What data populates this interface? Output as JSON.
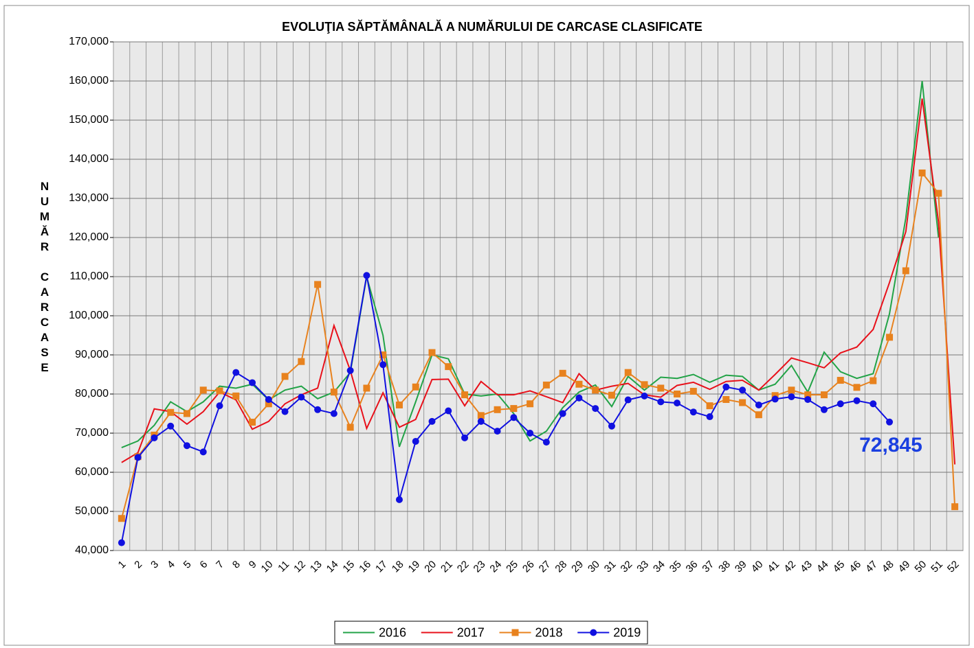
{
  "chart_data": {
    "type": "line",
    "title": "EVOLUŢIA SĂPTĂMÂNALĂ A NUMĂRULUI DE CARCASE  CLASIFICATE",
    "y_label": "NUMĂR CARCASE",
    "annotation": "72,845",
    "categories": [
      "1",
      "2",
      "3",
      "4",
      "5",
      "6",
      "7",
      "8",
      "9",
      "10",
      "11",
      "12",
      "13",
      "14",
      "15",
      "16",
      "17",
      "18",
      "19",
      "20",
      "21",
      "22",
      "23",
      "24",
      "25",
      "26",
      "27",
      "28",
      "29",
      "30",
      "31",
      "32",
      "33",
      "34",
      "35",
      "36",
      "37",
      "38",
      "39",
      "40",
      "41",
      "42",
      "43",
      "44",
      "45",
      "46",
      "47",
      "48",
      "49",
      "50",
      "51",
      "52"
    ],
    "ylim": [
      40000,
      170000
    ],
    "yticks": [
      {
        "value": 40000,
        "label": "40,000"
      },
      {
        "value": 50000,
        "label": "50,000"
      },
      {
        "value": 60000,
        "label": "60,000"
      },
      {
        "value": 70000,
        "label": "70,000"
      },
      {
        "value": 80000,
        "label": "80,000"
      },
      {
        "value": 90000,
        "label": "90,000"
      },
      {
        "value": 100000,
        "label": "100,000"
      },
      {
        "value": 110000,
        "label": "110,000"
      },
      {
        "value": 120000,
        "label": "120,000"
      },
      {
        "value": 130000,
        "label": "130,000"
      },
      {
        "value": 140000,
        "label": "140,000"
      },
      {
        "value": 150000,
        "label": "150,000"
      },
      {
        "value": 160000,
        "label": "160,000"
      },
      {
        "value": 170000,
        "label": "170,000"
      }
    ],
    "grid": true,
    "legend": "bottom",
    "series": [
      {
        "name": "2016",
        "color": "#22a347",
        "marker": "none",
        "values": [
          66300,
          68000,
          72000,
          78000,
          75500,
          78000,
          82000,
          81500,
          82500,
          78500,
          81000,
          82000,
          78800,
          80500,
          85500,
          110000,
          95000,
          66500,
          78000,
          90000,
          89000,
          80000,
          79500,
          80000,
          75000,
          68000,
          70500,
          76500,
          80500,
          82300,
          76800,
          84500,
          81000,
          84300,
          84000,
          85000,
          83000,
          84800,
          84500,
          81000,
          82500,
          87300,
          80500,
          90700,
          85700,
          84000,
          85200,
          100500,
          125000,
          160000,
          120000,
          null
        ]
      },
      {
        "name": "2017",
        "color": "#e8101a",
        "marker": "none",
        "values": [
          62500,
          65000,
          76200,
          75500,
          72300,
          75500,
          80500,
          78500,
          71000,
          73000,
          77500,
          79800,
          81500,
          97500,
          86000,
          71200,
          80300,
          71500,
          73500,
          83700,
          83800,
          77000,
          83200,
          79800,
          79800,
          80800,
          79300,
          77800,
          85200,
          81000,
          82000,
          82700,
          79800,
          79200,
          82200,
          83000,
          81200,
          83200,
          83500,
          81000,
          85000,
          89200,
          88000,
          86700,
          90500,
          92000,
          96500,
          108500,
          121500,
          155500,
          124000,
          62000
        ]
      },
      {
        "name": "2018",
        "color": "#e8821e",
        "marker": "square",
        "values": [
          48200,
          64000,
          69500,
          75300,
          75000,
          81000,
          80800,
          79500,
          72800,
          77500,
          84500,
          88300,
          108000,
          80500,
          71500,
          81500,
          90000,
          77200,
          81800,
          90600,
          87000,
          79800,
          74500,
          76000,
          76300,
          77500,
          82300,
          85300,
          82500,
          81000,
          79700,
          85500,
          82400,
          81500,
          80000,
          80700,
          77000,
          78600,
          77800,
          74700,
          79600,
          81000,
          79800,
          79800,
          83500,
          81700,
          83400,
          94500,
          111500,
          136500,
          131300,
          51200
        ]
      },
      {
        "name": "2019",
        "color": "#1010e0",
        "marker": "circle",
        "values": [
          42000,
          63800,
          68800,
          71800,
          66800,
          65200,
          77000,
          85500,
          82900,
          78600,
          75500,
          79200,
          76000,
          75000,
          86000,
          110300,
          87500,
          53000,
          67900,
          73000,
          75700,
          68800,
          73000,
          70500,
          74000,
          70000,
          67700,
          75000,
          79000,
          76300,
          71800,
          78500,
          79500,
          78000,
          77700,
          75400,
          74200,
          81800,
          81000,
          77200,
          78700,
          79300,
          78600,
          76000,
          77500,
          78300,
          77500,
          72845,
          null,
          null,
          null,
          null
        ]
      }
    ]
  }
}
